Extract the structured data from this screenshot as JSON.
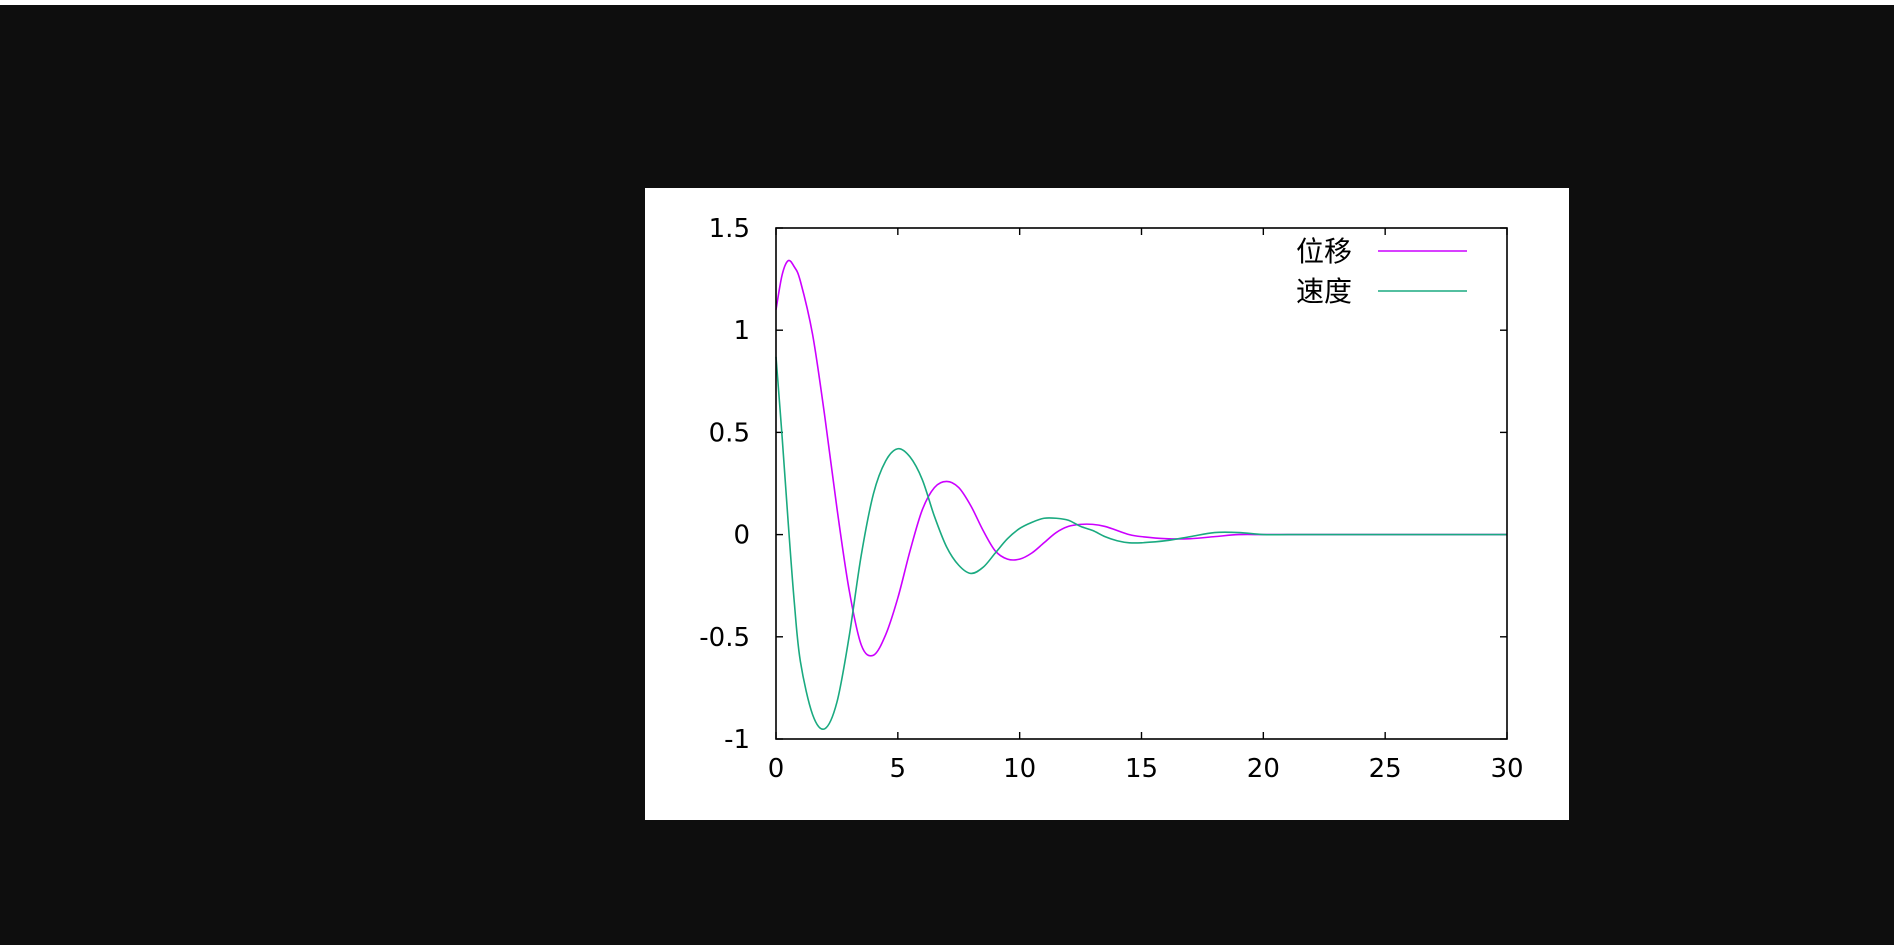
{
  "colors": {
    "background": "#0e0e0e",
    "plot_background": "#ffffff",
    "axis": "#000000"
  },
  "chart_data": {
    "type": "line",
    "title": "",
    "xlabel": "",
    "ylabel": "",
    "xlim": [
      0,
      30
    ],
    "ylim": [
      -1,
      1.5
    ],
    "x_ticks": [
      "0",
      "5",
      "10",
      "15",
      "20",
      "25",
      "30"
    ],
    "y_ticks": [
      "1.5",
      "1",
      "0.5",
      "0",
      "-0.5",
      "-1"
    ],
    "grid": false,
    "legend_position": "top-right",
    "x": [
      0,
      0.25,
      0.5,
      0.75,
      1,
      1.5,
      2,
      2.5,
      3,
      3.5,
      4,
      4.5,
      5,
      5.5,
      6,
      6.5,
      7,
      7.5,
      8,
      8.5,
      9,
      9.5,
      10,
      10.5,
      11,
      11.5,
      12,
      12.5,
      13,
      13.5,
      14,
      14.5,
      15,
      16,
      17,
      18,
      19,
      20,
      21,
      22,
      23,
      24,
      25,
      26,
      27,
      28,
      29,
      30
    ],
    "series": [
      {
        "name": "位移",
        "color": "#cc00ff",
        "values": [
          1.1,
          1.27,
          1.34,
          1.31,
          1.24,
          0.98,
          0.58,
          0.13,
          -0.27,
          -0.54,
          -0.59,
          -0.49,
          -0.31,
          -0.08,
          0.12,
          0.23,
          0.26,
          0.23,
          0.14,
          0.02,
          -0.08,
          -0.12,
          -0.12,
          -0.09,
          -0.04,
          0.01,
          0.04,
          0.05,
          0.05,
          0.04,
          0.02,
          0.0,
          -0.01,
          -0.02,
          -0.02,
          -0.01,
          0.0,
          0.0,
          0.0,
          0.0,
          0.0,
          0.0,
          0.0,
          0.0,
          0.0,
          0.0,
          0.0,
          0.0
        ]
      },
      {
        "name": "速度",
        "color": "#1aaa80",
        "values": [
          0.87,
          0.48,
          0.06,
          -0.33,
          -0.62,
          -0.88,
          -0.95,
          -0.82,
          -0.5,
          -0.1,
          0.2,
          0.36,
          0.42,
          0.38,
          0.27,
          0.09,
          -0.06,
          -0.15,
          -0.19,
          -0.16,
          -0.09,
          -0.02,
          0.03,
          0.06,
          0.08,
          0.08,
          0.07,
          0.04,
          0.02,
          -0.01,
          -0.03,
          -0.04,
          -0.04,
          -0.03,
          -0.01,
          0.01,
          0.01,
          0.0,
          0.0,
          0.0,
          0.0,
          0.0,
          0.0,
          0.0,
          0.0,
          0.0,
          0.0,
          0.0
        ]
      }
    ]
  }
}
